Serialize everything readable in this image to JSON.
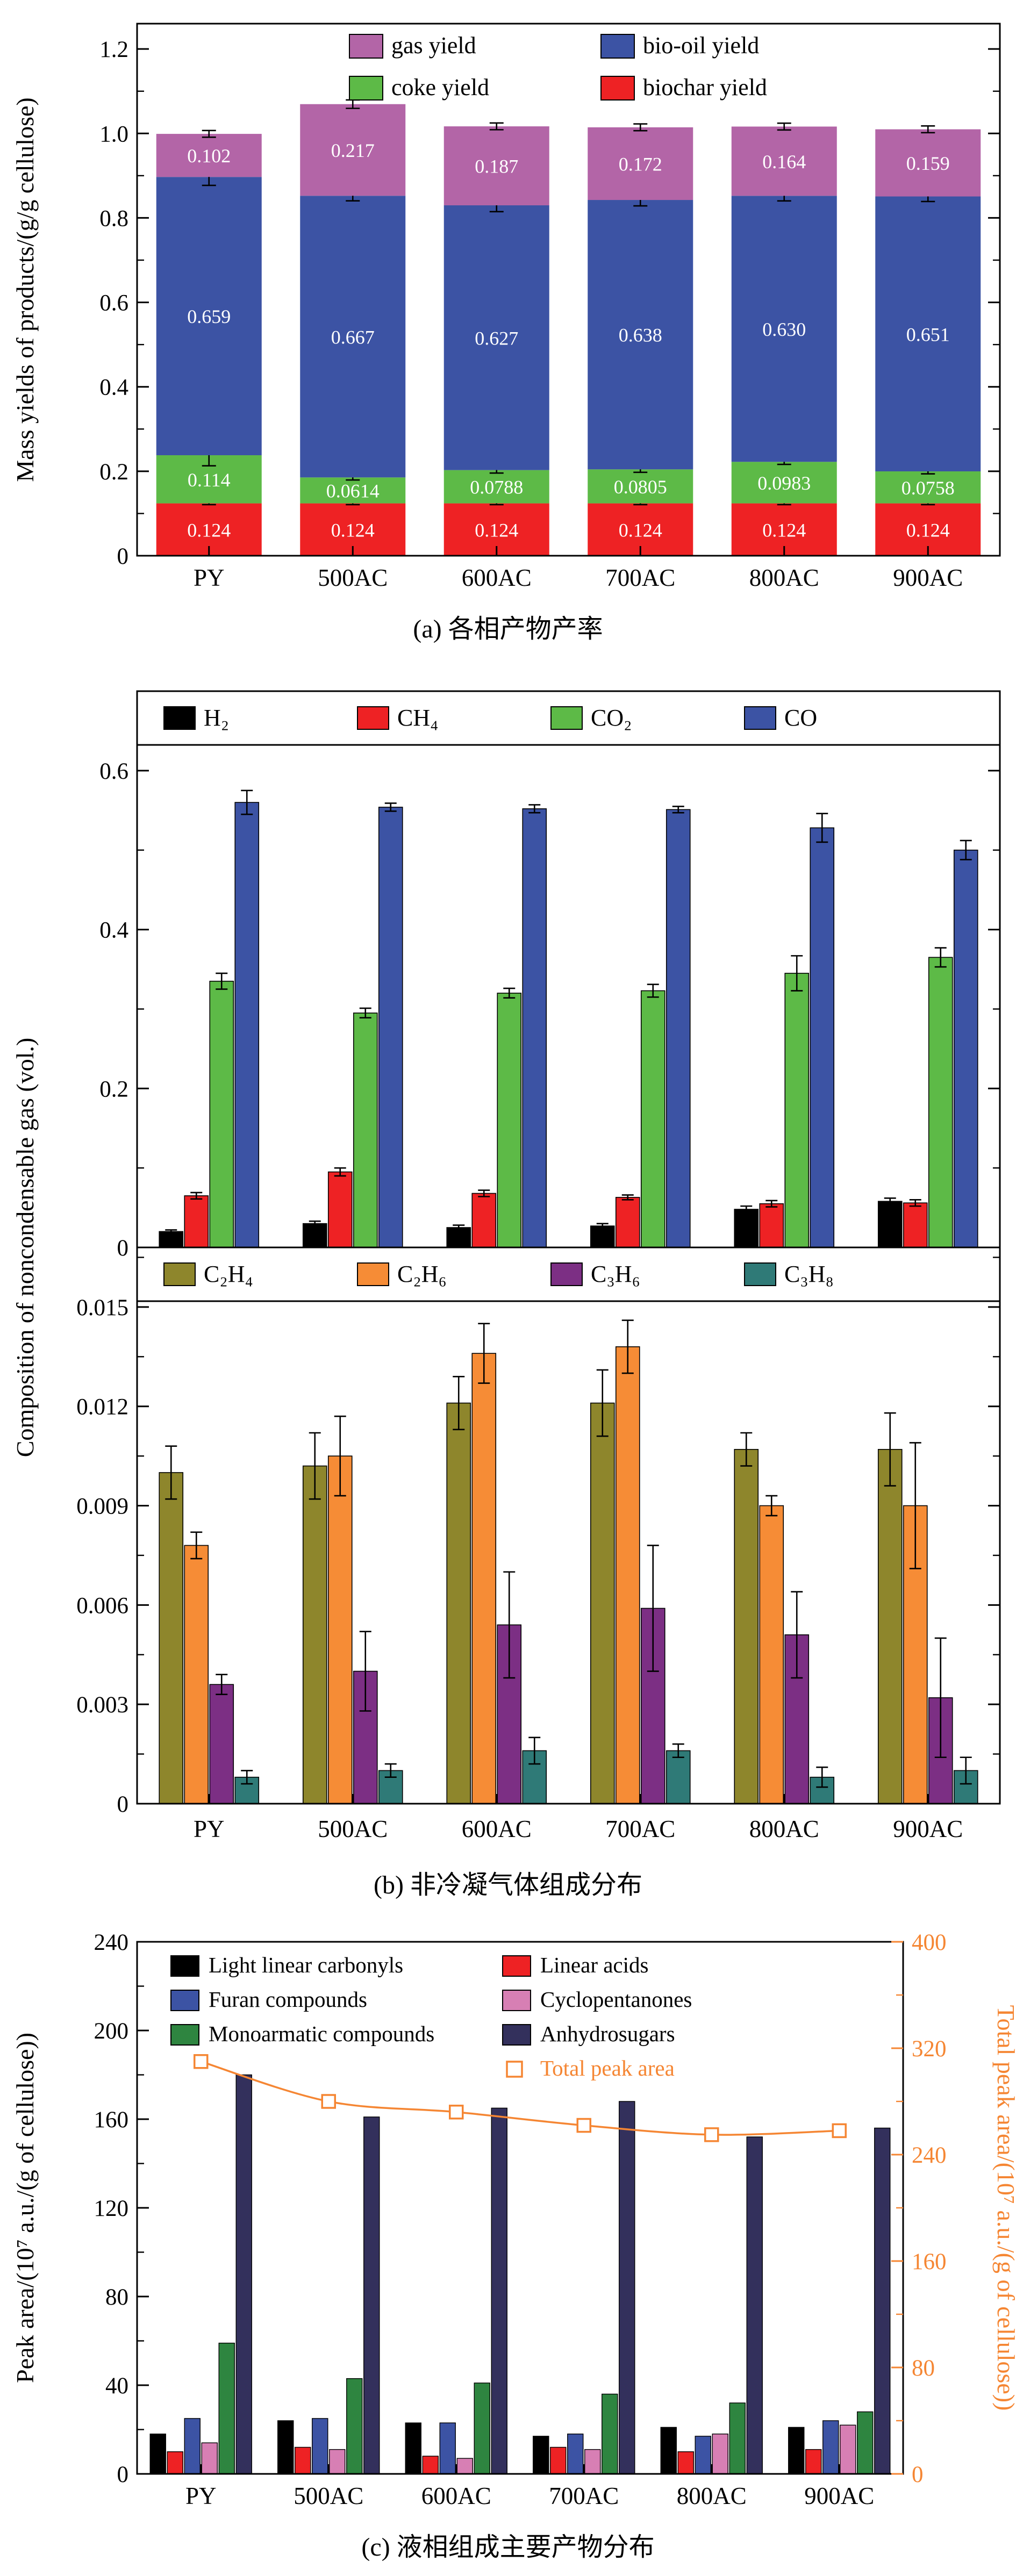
{
  "captions": {
    "a": "(a) 各相产物产率",
    "b": "(b) 非冷凝气体组成分布",
    "c": "(c) 液相组成主要产物分布"
  },
  "chart_data": [
    {
      "id": "chart-a",
      "type": "bar",
      "stacked": true,
      "grid": false,
      "legend_position": "inside-top",
      "ylabel": "Mass yields of products/(g/g cellulose)",
      "xlabel": "",
      "ylim": [
        0,
        1.26
      ],
      "yticks": [
        0,
        0.2,
        0.4,
        0.6,
        0.8,
        1.0,
        1.2
      ],
      "ytick_labels": [
        "0",
        "0.2",
        "0.4",
        "0.6",
        "0.8",
        "1.0",
        "1.2"
      ],
      "minor_tick_step": 0.1,
      "categories": [
        "PY",
        "500AC",
        "600AC",
        "700AC",
        "800AC",
        "900AC"
      ],
      "series": [
        {
          "name": "biochar yield",
          "color": "#ee2224",
          "values": [
            0.124,
            0.124,
            0.124,
            0.124,
            0.124,
            0.124
          ],
          "labels": [
            "0.124",
            "0.124",
            "0.124",
            "0.124",
            "0.124",
            "0.124"
          ],
          "errors": [
            0.003,
            0.003,
            0.003,
            0.003,
            0.003,
            0.003
          ]
        },
        {
          "name": "coke yield",
          "color": "#5dba47",
          "values": [
            0.114,
            0.0614,
            0.0788,
            0.0805,
            0.0983,
            0.0758
          ],
          "labels": [
            "0.114",
            "0.0614",
            "0.0788",
            "0.0805",
            "0.0983",
            "0.0758"
          ],
          "errors": [
            0.025,
            0.006,
            0.007,
            0.007,
            0.006,
            0.006
          ]
        },
        {
          "name": "bio-oil yield",
          "color": "#3c53a4",
          "values": [
            0.659,
            0.667,
            0.627,
            0.638,
            0.63,
            0.651
          ],
          "labels": [
            "0.659",
            "0.667",
            "0.627",
            "0.638",
            "0.630",
            "0.651"
          ],
          "errors": [
            0.02,
            0.012,
            0.015,
            0.014,
            0.012,
            0.012
          ]
        },
        {
          "name": "gas yield",
          "color": "#b365a7",
          "values": [
            0.102,
            0.217,
            0.187,
            0.172,
            0.164,
            0.159
          ],
          "labels": [
            "0.102",
            "0.217",
            "0.187",
            "0.172",
            "0.164",
            "0.159"
          ],
          "errors": [
            0.008,
            0.01,
            0.008,
            0.008,
            0.008,
            0.008
          ]
        }
      ],
      "legend_rows": [
        [
          "gas yield",
          "bio-oil yield"
        ],
        [
          "coke yield",
          "biochar yield"
        ]
      ]
    },
    {
      "id": "chart-b",
      "type": "bar",
      "grouped": true,
      "grid": false,
      "legend_position": "inside-top-band",
      "ylabel": "Composition of noncondensable gas (vol.)",
      "xlabel": "",
      "categories": [
        "PY",
        "500AC",
        "600AC",
        "700AC",
        "800AC",
        "900AC"
      ],
      "panels": [
        {
          "ylim": [
            0,
            0.7
          ],
          "yticks": [
            0,
            0.2,
            0.4,
            0.6
          ],
          "ytick_labels": [
            "0",
            "0.2",
            "0.4",
            "0.6"
          ],
          "minor_tick_step": 0.1,
          "series": [
            {
              "name": "H₂",
              "color": "#000000",
              "values": [
                0.02,
                0.03,
                0.025,
                0.027,
                0.048,
                0.058
              ],
              "errors": [
                0.002,
                0.003,
                0.003,
                0.003,
                0.004,
                0.004
              ]
            },
            {
              "name": "CH₄",
              "color": "#ee2224",
              "values": [
                0.065,
                0.095,
                0.068,
                0.063,
                0.055,
                0.056
              ],
              "errors": [
                0.004,
                0.005,
                0.004,
                0.003,
                0.004,
                0.004
              ]
            },
            {
              "name": "CO₂",
              "color": "#5dba47",
              "values": [
                0.335,
                0.295,
                0.32,
                0.323,
                0.345,
                0.365
              ],
              "errors": [
                0.01,
                0.006,
                0.006,
                0.008,
                0.022,
                0.012
              ]
            },
            {
              "name": "CO",
              "color": "#3c53a4",
              "values": [
                0.56,
                0.554,
                0.552,
                0.551,
                0.528,
                0.5
              ],
              "errors": [
                0.015,
                0.005,
                0.005,
                0.004,
                0.018,
                0.012
              ]
            }
          ]
        },
        {
          "ylim": [
            0,
            0.0168
          ],
          "yticks": [
            0,
            0.003,
            0.006,
            0.009,
            0.012,
            0.015
          ],
          "ytick_labels": [
            "0",
            "0.003",
            "0.006",
            "0.009",
            "0.012",
            "0.015"
          ],
          "minor_tick_step": 0.0015,
          "series": [
            {
              "name": "C₂H₄",
              "color": "#8e862c",
              "values": [
                0.01,
                0.0102,
                0.0121,
                0.0121,
                0.0107,
                0.0107
              ],
              "errors": [
                0.0008,
                0.001,
                0.0008,
                0.001,
                0.0005,
                0.0011
              ]
            },
            {
              "name": "C₂H₆",
              "color": "#f68c36",
              "values": [
                0.0078,
                0.0105,
                0.0136,
                0.0138,
                0.009,
                0.009
              ],
              "errors": [
                0.0004,
                0.0012,
                0.0009,
                0.0008,
                0.0003,
                0.0019
              ]
            },
            {
              "name": "C₃H₆",
              "color": "#7c2f84",
              "values": [
                0.0036,
                0.004,
                0.0054,
                0.0059,
                0.0051,
                0.0032
              ],
              "errors": [
                0.0003,
                0.0012,
                0.0016,
                0.0019,
                0.0013,
                0.0018
              ]
            },
            {
              "name": "C₃H₈",
              "color": "#2f7a77",
              "values": [
                0.0008,
                0.001,
                0.0016,
                0.0016,
                0.0008,
                0.001
              ],
              "errors": [
                0.0002,
                0.0002,
                0.0004,
                0.0002,
                0.0003,
                0.0004
              ]
            }
          ]
        }
      ]
    },
    {
      "id": "chart-c",
      "type": "bar+line",
      "grouped": true,
      "grid": false,
      "legend_position": "inside-top",
      "ylabel_left": "Peak area/(10⁷ a.u./(g of cellulose))",
      "ylabel_right": "Total peak area/(10⁷ a.u./(g of cellulose))",
      "ylim_left": [
        0,
        240
      ],
      "yticks_left": [
        0,
        40,
        80,
        120,
        160,
        200,
        240
      ],
      "ylim_right": [
        0,
        400
      ],
      "yticks_right": [
        0,
        80,
        160,
        240,
        320,
        400
      ],
      "right_axis_color": "#f58633",
      "categories": [
        "PY",
        "500AC",
        "600AC",
        "700AC",
        "800AC",
        "900AC"
      ],
      "series": [
        {
          "name": "Light linear carbonyls",
          "color": "#000000",
          "values": [
            18,
            24,
            23,
            17,
            21,
            21
          ]
        },
        {
          "name": "Linear acids",
          "color": "#ee2224",
          "values": [
            10,
            12,
            8,
            12,
            10,
            11
          ]
        },
        {
          "name": "Furan compounds",
          "color": "#3c53a4",
          "values": [
            25,
            25,
            23,
            18,
            17,
            24
          ]
        },
        {
          "name": "Cyclopentanones",
          "color": "#d77fb4",
          "values": [
            14,
            11,
            7,
            11,
            18,
            22
          ]
        },
        {
          "name": "Monoarmatic compounds",
          "color": "#2e8540",
          "values": [
            59,
            43,
            41,
            36,
            32,
            28
          ]
        },
        {
          "name": "Anhydrosugars",
          "color": "#33305c",
          "values": [
            180,
            161,
            165,
            168,
            152,
            156
          ]
        }
      ],
      "line_series": {
        "name": "Total peak area",
        "color": "#f58633",
        "marker": "open-square",
        "axis": "right",
        "values": [
          310,
          280,
          272,
          262,
          255,
          258
        ]
      }
    }
  ]
}
